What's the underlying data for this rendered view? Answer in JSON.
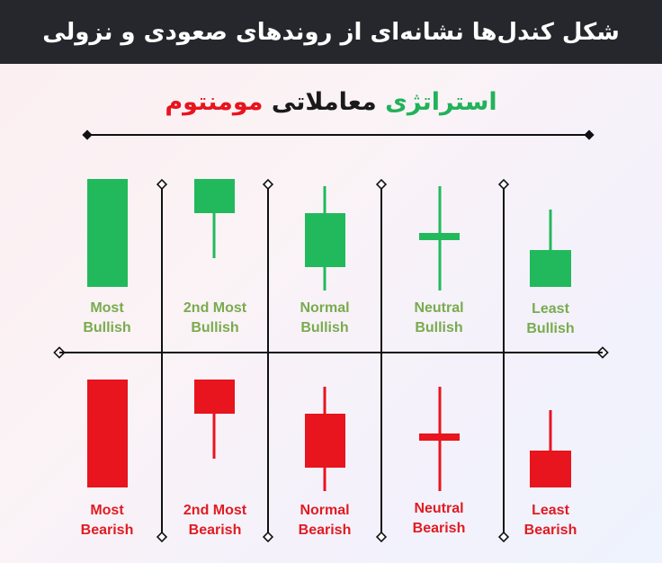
{
  "header": {
    "title": "شکل کندل‌ها نشانه‌ای از روندهای صعودی و نزولی",
    "background_color": "#26272c"
  },
  "subtitle": {
    "word_green": "استراتژی",
    "word_black": "معاملاتی",
    "word_red": "مومنتوم"
  },
  "colors": {
    "bullish": "#22b95c",
    "bearish": "#e8141e",
    "bullish_label": "#79ab4e",
    "bearish_label": "#e11b22",
    "line": "#111111"
  },
  "bullish_candles": [
    {
      "line1": "Most",
      "line2": "Bullish",
      "icon": "tall-full-body-candle"
    },
    {
      "line1": "2nd Most",
      "line2": "Bullish",
      "icon": "body-with-lower-wick-candle"
    },
    {
      "line1": "Normal",
      "line2": "Bullish",
      "icon": "body-with-both-wicks-candle"
    },
    {
      "line1": "Neutral",
      "line2": "Bullish",
      "icon": "doji-candle"
    },
    {
      "line1": "Least",
      "line2": "Bullish",
      "icon": "small-body-upper-wick-candle"
    }
  ],
  "bearish_candles": [
    {
      "line1": "Most",
      "line2": "Bearish",
      "icon": "tall-full-body-candle"
    },
    {
      "line1": "2nd Most",
      "line2": "Bearish",
      "icon": "body-with-lower-wick-candle"
    },
    {
      "line1": "Normal",
      "line2": "Bearish",
      "icon": "body-with-both-wicks-candle"
    },
    {
      "line1": "Neutral",
      "line2": "Bearish",
      "icon": "doji-candle"
    },
    {
      "line1": "Least",
      "line2": "Bearish",
      "icon": "small-body-upper-wick-candle"
    }
  ]
}
